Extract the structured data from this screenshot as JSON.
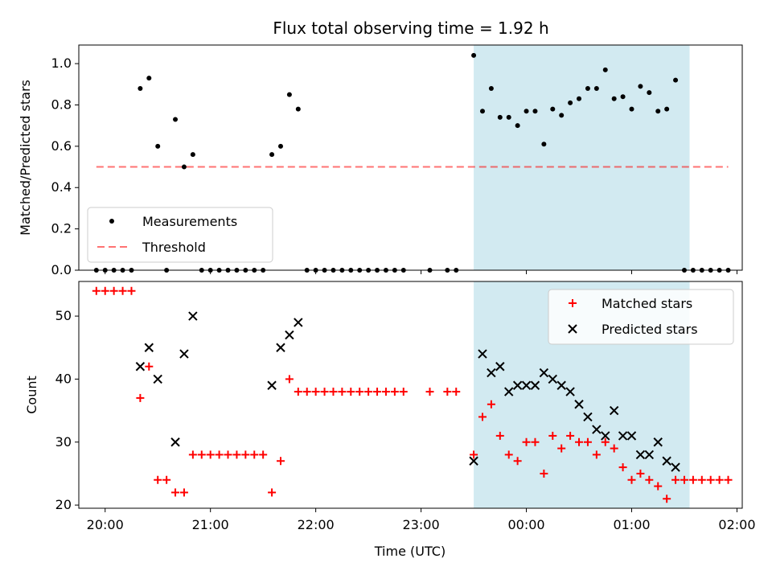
{
  "title": "Flux total observing time = 1.92 h",
  "colors": {
    "measurement": "#000000",
    "threshold": "#ff0000",
    "matched": "#ff0000",
    "predicted": "#000000",
    "window": "#add8e6"
  },
  "chart_data": [
    {
      "type": "scatter",
      "panel": "top",
      "xlabel": "",
      "ylabel": "Matched/Predicted stars",
      "xlim": [
        "19:45",
        "02:03"
      ],
      "ylim": [
        0,
        1.09
      ],
      "yticks": [
        "0.0",
        "0.2",
        "0.4",
        "0.6",
        "0.8",
        "1.0"
      ],
      "legend_position": "lower-left",
      "observing_window": [
        "23:30",
        "01:33"
      ],
      "legend": {
        "measurements": "Measurements",
        "threshold": "Threshold"
      },
      "threshold": {
        "value": 0.5,
        "x_range": [
          "19:55",
          "01:55"
        ]
      },
      "series": [
        {
          "name": "Measurements",
          "points": [
            [
              "19:55",
              0
            ],
            [
              "20:00",
              0
            ],
            [
              "20:05",
              0
            ],
            [
              "20:10",
              0
            ],
            [
              "20:15",
              0
            ],
            [
              "20:20",
              0.88
            ],
            [
              "20:25",
              0.93
            ],
            [
              "20:30",
              0.6
            ],
            [
              "20:35",
              0
            ],
            [
              "20:40",
              0.73
            ],
            [
              "20:45",
              0.5
            ],
            [
              "20:50",
              0.56
            ],
            [
              "20:55",
              0
            ],
            [
              "21:00",
              0
            ],
            [
              "21:05",
              0
            ],
            [
              "21:10",
              0
            ],
            [
              "21:15",
              0
            ],
            [
              "21:20",
              0
            ],
            [
              "21:25",
              0
            ],
            [
              "21:30",
              0
            ],
            [
              "21:35",
              0.56
            ],
            [
              "21:40",
              0.6
            ],
            [
              "21:45",
              0.85
            ],
            [
              "21:50",
              0.78
            ],
            [
              "21:55",
              0
            ],
            [
              "22:00",
              0
            ],
            [
              "22:05",
              0
            ],
            [
              "22:10",
              0
            ],
            [
              "22:15",
              0
            ],
            [
              "22:20",
              0
            ],
            [
              "22:25",
              0
            ],
            [
              "22:30",
              0
            ],
            [
              "22:35",
              0
            ],
            [
              "22:40",
              0
            ],
            [
              "22:45",
              0
            ],
            [
              "22:50",
              0
            ],
            [
              "23:05",
              0
            ],
            [
              "23:15",
              0
            ],
            [
              "23:20",
              0
            ],
            [
              "23:30",
              1.04
            ],
            [
              "23:35",
              0.77
            ],
            [
              "23:40",
              0.88
            ],
            [
              "23:45",
              0.74
            ],
            [
              "23:50",
              0.74
            ],
            [
              "23:55",
              0.7
            ],
            [
              "00:00",
              0.77
            ],
            [
              "00:05",
              0.77
            ],
            [
              "00:10",
              0.61
            ],
            [
              "00:15",
              0.78
            ],
            [
              "00:20",
              0.75
            ],
            [
              "00:25",
              0.81
            ],
            [
              "00:30",
              0.83
            ],
            [
              "00:35",
              0.88
            ],
            [
              "00:40",
              0.88
            ],
            [
              "00:45",
              0.97
            ],
            [
              "00:50",
              0.83
            ],
            [
              "00:55",
              0.84
            ],
            [
              "01:00",
              0.78
            ],
            [
              "01:05",
              0.89
            ],
            [
              "01:10",
              0.86
            ],
            [
              "01:15",
              0.77
            ],
            [
              "01:20",
              0.78
            ],
            [
              "01:25",
              0.92
            ],
            [
              "01:30",
              0
            ],
            [
              "01:35",
              0
            ],
            [
              "01:40",
              0
            ],
            [
              "01:45",
              0
            ],
            [
              "01:50",
              0
            ],
            [
              "01:55",
              0
            ]
          ]
        }
      ]
    },
    {
      "type": "scatter",
      "panel": "bottom",
      "xlabel": "Time (UTC)",
      "ylabel": "Count",
      "xlim": [
        "19:45",
        "02:03"
      ],
      "ylim": [
        19.5,
        55.5
      ],
      "xticks": [
        "20:00",
        "21:00",
        "22:00",
        "23:00",
        "00:00",
        "01:00",
        "02:00"
      ],
      "yticks": [
        "20",
        "30",
        "40",
        "50"
      ],
      "legend_position": "upper-right",
      "observing_window": [
        "23:30",
        "01:33"
      ],
      "series": [
        {
          "name": "Matched stars",
          "marker": "+",
          "points": [
            [
              "19:55",
              54
            ],
            [
              "20:00",
              54
            ],
            [
              "20:05",
              54
            ],
            [
              "20:10",
              54
            ],
            [
              "20:15",
              54
            ],
            [
              "20:20",
              37
            ],
            [
              "20:25",
              42
            ],
            [
              "20:30",
              24
            ],
            [
              "20:35",
              24
            ],
            [
              "20:40",
              22
            ],
            [
              "20:45",
              22
            ],
            [
              "20:50",
              28
            ],
            [
              "20:55",
              28
            ],
            [
              "21:00",
              28
            ],
            [
              "21:05",
              28
            ],
            [
              "21:10",
              28
            ],
            [
              "21:15",
              28
            ],
            [
              "21:20",
              28
            ],
            [
              "21:25",
              28
            ],
            [
              "21:30",
              28
            ],
            [
              "21:35",
              22
            ],
            [
              "21:40",
              27
            ],
            [
              "21:45",
              40
            ],
            [
              "21:50",
              38
            ],
            [
              "21:55",
              38
            ],
            [
              "22:00",
              38
            ],
            [
              "22:05",
              38
            ],
            [
              "22:10",
              38
            ],
            [
              "22:15",
              38
            ],
            [
              "22:20",
              38
            ],
            [
              "22:25",
              38
            ],
            [
              "22:30",
              38
            ],
            [
              "22:35",
              38
            ],
            [
              "22:40",
              38
            ],
            [
              "22:45",
              38
            ],
            [
              "22:50",
              38
            ],
            [
              "23:05",
              38
            ],
            [
              "23:15",
              38
            ],
            [
              "23:20",
              38
            ],
            [
              "23:30",
              28
            ],
            [
              "23:35",
              34
            ],
            [
              "23:40",
              36
            ],
            [
              "23:45",
              31
            ],
            [
              "23:50",
              28
            ],
            [
              "23:55",
              27
            ],
            [
              "00:00",
              30
            ],
            [
              "00:05",
              30
            ],
            [
              "00:10",
              25
            ],
            [
              "00:15",
              31
            ],
            [
              "00:20",
              29
            ],
            [
              "00:25",
              31
            ],
            [
              "00:30",
              30
            ],
            [
              "00:35",
              30
            ],
            [
              "00:40",
              28
            ],
            [
              "00:45",
              30
            ],
            [
              "00:50",
              29
            ],
            [
              "00:55",
              26
            ],
            [
              "01:00",
              24
            ],
            [
              "01:05",
              25
            ],
            [
              "01:10",
              24
            ],
            [
              "01:15",
              23
            ],
            [
              "01:20",
              21
            ],
            [
              "01:25",
              24
            ],
            [
              "01:30",
              24
            ],
            [
              "01:35",
              24
            ],
            [
              "01:40",
              24
            ],
            [
              "01:45",
              24
            ],
            [
              "01:50",
              24
            ],
            [
              "01:55",
              24
            ]
          ]
        },
        {
          "name": "Predicted stars",
          "marker": "x",
          "points": [
            [
              "20:20",
              42
            ],
            [
              "20:25",
              45
            ],
            [
              "20:30",
              40
            ],
            [
              "20:40",
              30
            ],
            [
              "20:45",
              44
            ],
            [
              "20:50",
              50
            ],
            [
              "21:35",
              39
            ],
            [
              "21:40",
              45
            ],
            [
              "21:45",
              47
            ],
            [
              "21:50",
              49
            ],
            [
              "23:30",
              27
            ],
            [
              "23:35",
              44
            ],
            [
              "23:40",
              41
            ],
            [
              "23:45",
              42
            ],
            [
              "23:50",
              38
            ],
            [
              "23:55",
              39
            ],
            [
              "00:00",
              39
            ],
            [
              "00:05",
              39
            ],
            [
              "00:10",
              41
            ],
            [
              "00:15",
              40
            ],
            [
              "00:20",
              39
            ],
            [
              "00:25",
              38
            ],
            [
              "00:30",
              36
            ],
            [
              "00:35",
              34
            ],
            [
              "00:40",
              32
            ],
            [
              "00:45",
              31
            ],
            [
              "00:50",
              35
            ],
            [
              "00:55",
              31
            ],
            [
              "01:00",
              31
            ],
            [
              "01:05",
              28
            ],
            [
              "01:10",
              28
            ],
            [
              "01:15",
              30
            ],
            [
              "01:20",
              27
            ],
            [
              "01:25",
              26
            ]
          ]
        }
      ]
    }
  ]
}
